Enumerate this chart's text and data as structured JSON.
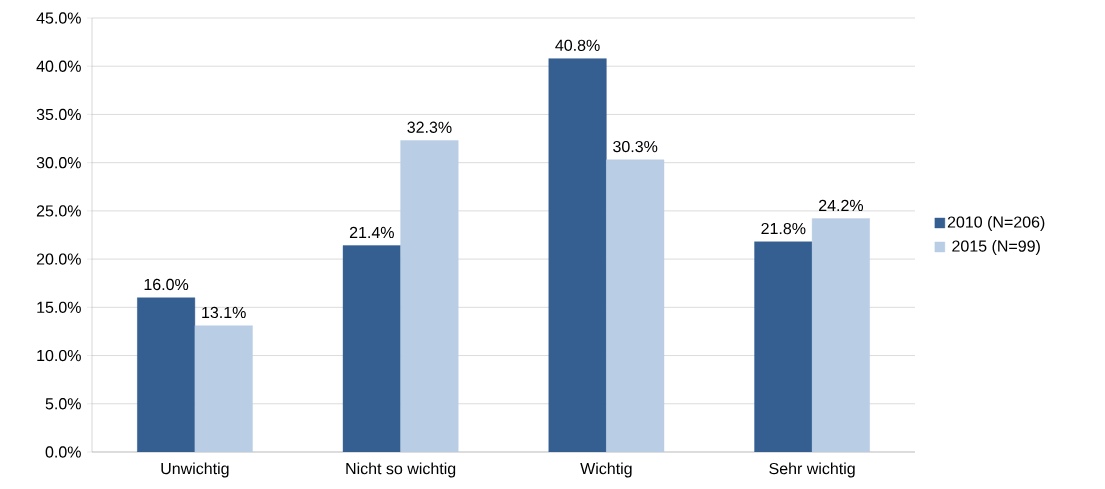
{
  "chart_data": {
    "type": "bar",
    "categories": [
      "Unwichtig",
      "Nicht so wichtig",
      "Wichtig",
      "Sehr wichtig"
    ],
    "series": [
      {
        "name": "2010 (N=206)",
        "color": "#355f91",
        "values": [
          16.0,
          21.4,
          40.8,
          21.8
        ],
        "value_labels": [
          "16.0%",
          "21.4%",
          "40.8%",
          "21.8%"
        ]
      },
      {
        "name": "2015 (N=99)",
        "color": "#b9cde5",
        "values": [
          13.1,
          32.3,
          30.3,
          24.2
        ],
        "value_labels": [
          "13.1%",
          "32.3%",
          "30.3%",
          "24.2%"
        ]
      }
    ],
    "ylim": [
      0,
      45
    ],
    "yticks": [
      {
        "value": 0,
        "label": "0.0%"
      },
      {
        "value": 5,
        "label": "5.0%"
      },
      {
        "value": 10,
        "label": "10.0%"
      },
      {
        "value": 15,
        "label": "15.0%"
      },
      {
        "value": 20,
        "label": "20.0%"
      },
      {
        "value": 25,
        "label": "25.0%"
      },
      {
        "value": 30,
        "label": "30.0%"
      },
      {
        "value": 35,
        "label": "35.0%"
      },
      {
        "value": 40,
        "label": "40.0%"
      },
      {
        "value": 45,
        "label": "45.0%"
      }
    ],
    "grid": "y",
    "legend": "right"
  }
}
